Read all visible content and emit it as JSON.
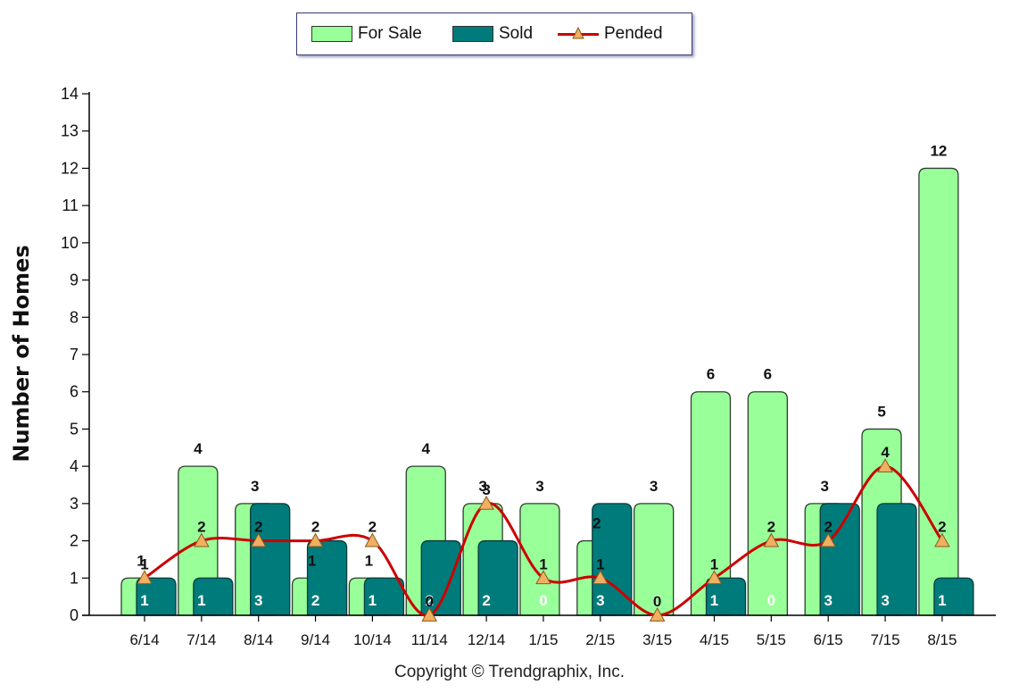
{
  "chart_data": {
    "type": "bar",
    "categories": [
      "6/14",
      "7/14",
      "8/14",
      "9/14",
      "10/14",
      "11/14",
      "12/14",
      "1/15",
      "2/15",
      "3/15",
      "4/15",
      "5/15",
      "6/15",
      "7/15",
      "8/15"
    ],
    "series": [
      {
        "name": "For Sale",
        "type": "bar",
        "color": "#99ff99",
        "values": [
          1,
          4,
          3,
          1,
          1,
          4,
          3,
          3,
          2,
          3,
          6,
          6,
          3,
          5,
          12
        ]
      },
      {
        "name": "Sold",
        "type": "bar",
        "color": "#007b7b",
        "values": [
          1,
          1,
          3,
          2,
          1,
          2,
          2,
          0,
          3,
          0,
          1,
          0,
          3,
          3,
          1
        ]
      },
      {
        "name": "Pended",
        "type": "line",
        "color": "#cc0000",
        "marker": "triangle",
        "values": [
          1,
          2,
          2,
          2,
          2,
          0,
          3,
          1,
          1,
          0,
          1,
          2,
          2,
          4,
          2
        ]
      }
    ],
    "ylabel": "Number of Homes",
    "xlabel": "",
    "ylim": [
      0,
      14
    ],
    "yticks": [
      0,
      1,
      2,
      3,
      4,
      5,
      6,
      7,
      8,
      9,
      10,
      11,
      12,
      13,
      14
    ],
    "grid": false,
    "legend": "top-center",
    "data_labels": true
  },
  "copyright": "Copyright © Trendgraphix, Inc."
}
